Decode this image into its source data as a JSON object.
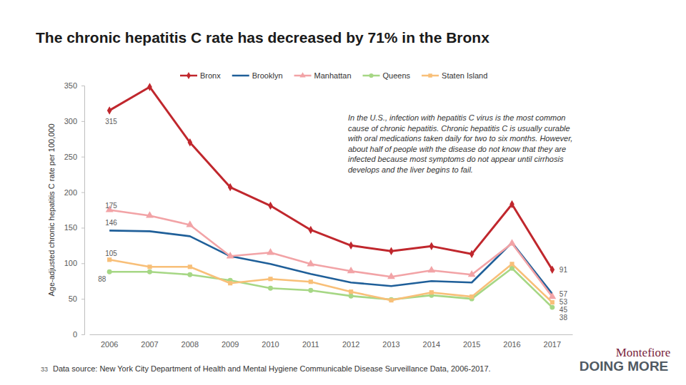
{
  "chart_data": {
    "type": "line",
    "title": "The chronic hepatitis C rate has decreased by 71% in the Bronx",
    "y_label": "Age-adjusted chronic hepatitis C rate per 100,000",
    "categories": [
      "2006",
      "2007",
      "2008",
      "2009",
      "2010",
      "2011",
      "2012",
      "2013",
      "2014",
      "2015",
      "2016",
      "2017"
    ],
    "series": [
      {
        "name": "Bronx",
        "color": "#c0272d",
        "marker": "diamond",
        "values": [
          315,
          348,
          270,
          207,
          181,
          147,
          125,
          117,
          124,
          113,
          183,
          91
        ],
        "value_labels": [
          "315",
          null,
          null,
          null,
          null,
          null,
          null,
          null,
          null,
          null,
          null,
          "91"
        ]
      },
      {
        "name": "Brooklyn",
        "color": "#1f5f99",
        "marker": "none",
        "values": [
          146,
          145,
          138,
          110,
          99,
          85,
          73,
          68,
          75,
          73,
          129,
          57
        ],
        "value_labels": [
          "146",
          null,
          null,
          null,
          null,
          null,
          null,
          null,
          null,
          null,
          null,
          "57"
        ]
      },
      {
        "name": "Manhattan",
        "color": "#f2a3a6",
        "marker": "triangle",
        "values": [
          175,
          167,
          154,
          110,
          115,
          99,
          89,
          81,
          90,
          84,
          128,
          53
        ],
        "value_labels": [
          "175",
          null,
          null,
          null,
          null,
          null,
          null,
          null,
          null,
          null,
          null,
          "53"
        ]
      },
      {
        "name": "Queens",
        "color": "#a6d785",
        "marker": "circle",
        "values": [
          88,
          88,
          84,
          76,
          65,
          62,
          54,
          49,
          55,
          50,
          93,
          38
        ],
        "value_labels": [
          "88",
          null,
          null,
          null,
          null,
          null,
          null,
          null,
          null,
          null,
          null,
          "38"
        ]
      },
      {
        "name": "Staten Island",
        "color": "#f8bf78",
        "marker": "square",
        "values": [
          105,
          95,
          95,
          72,
          78,
          74,
          60,
          48,
          59,
          53,
          99,
          45
        ],
        "value_labels": [
          "105",
          null,
          null,
          null,
          null,
          null,
          null,
          null,
          null,
          null,
          null,
          "45"
        ]
      }
    ],
    "ylim": [
      0,
      350
    ],
    "yticks": [
      0,
      50,
      100,
      150,
      200,
      250,
      300,
      350
    ],
    "grid": false,
    "legend": "top",
    "annotation": [
      "In the U.S., infection with hepatitis C virus is the most common",
      "cause of chronic hepatitis. Chronic hepatitis C is usually curable",
      "with oral medications taken daily for two to six months. However,",
      "about half of people with the disease do not know that they are",
      "infected because most symptoms do not appear until cirrhosis",
      "develops and the liver begins to fail."
    ],
    "source": "Data source: New York City Department of Health and Mental Hygiene Communicable Disease Surveillance Data, 2006-2017.",
    "page_number": "33",
    "logo": [
      "Montefiore",
      "DOING MORE"
    ]
  }
}
